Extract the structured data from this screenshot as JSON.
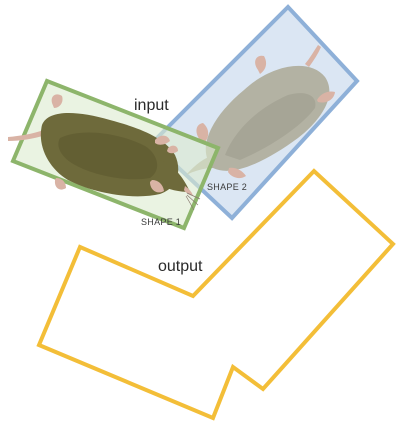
{
  "labels": {
    "input": "input",
    "output": "output",
    "shape1": "SHAPE 1",
    "shape2": "SHAPE 2"
  },
  "colors": {
    "shape1_border": "#8db56b",
    "shape1_fill": "#dcebcf",
    "shape2_border": "#8eb0d8",
    "shape2_fill": "#dbe6f3",
    "output_border": "#f3be38",
    "mole_green_body": "#6e6a3b",
    "mole_gray_body": "#b3b2a3",
    "mole_skin": "#d9b3a5"
  },
  "icons": {
    "mole1": "mole-illustration",
    "mole2": "mole-illustration-faded"
  }
}
